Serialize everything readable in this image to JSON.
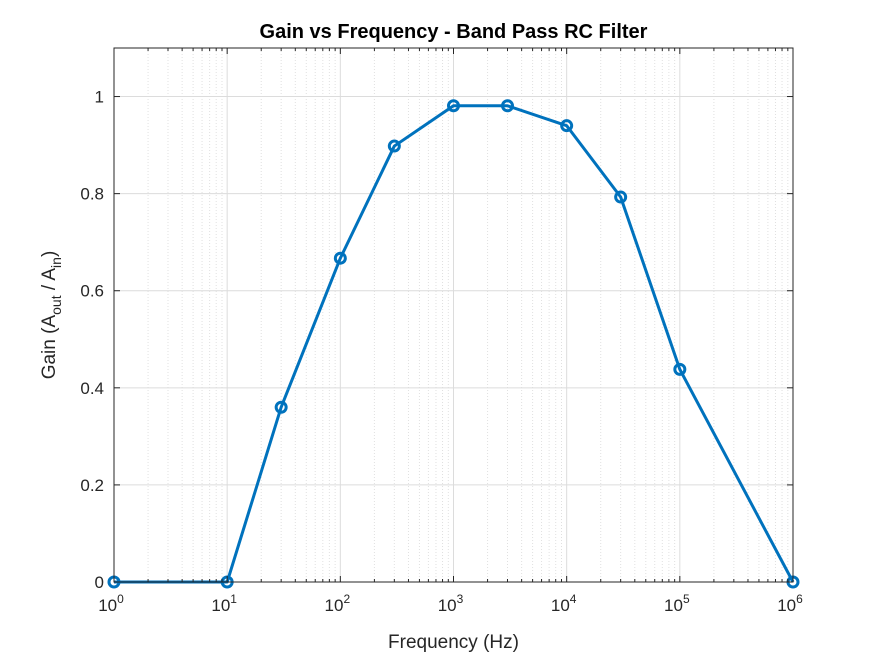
{
  "chart_data": {
    "type": "line",
    "title": "Gain vs Frequency - Band Pass RC Filter",
    "xlabel": "Frequency (Hz)",
    "ylabel": {
      "base": "Gain (A",
      "sub1": "out",
      "mid": " / A",
      "sub2": "in",
      "end": ")"
    },
    "xscale": "log",
    "xlim": [
      1,
      1000000
    ],
    "ylim": [
      0,
      1.1
    ],
    "grid": true,
    "x": [
      1,
      10,
      30,
      100,
      300,
      1000,
      3000,
      10000,
      30000,
      100000,
      1000000
    ],
    "series": [
      {
        "values": [
          0,
          0,
          0.36,
          0.667,
          0.898,
          0.981,
          0.981,
          0.94,
          0.793,
          0.438,
          0
        ],
        "color": "#0072BD",
        "marker": "circle"
      }
    ],
    "xticks": [
      {
        "value": 1,
        "base": "10",
        "exp": "0"
      },
      {
        "value": 10,
        "base": "10",
        "exp": "1"
      },
      {
        "value": 100,
        "base": "10",
        "exp": "2"
      },
      {
        "value": 1000,
        "base": "10",
        "exp": "3"
      },
      {
        "value": 10000,
        "base": "10",
        "exp": "4"
      },
      {
        "value": 100000,
        "base": "10",
        "exp": "5"
      },
      {
        "value": 1000000,
        "base": "10",
        "exp": "6"
      }
    ],
    "yticks": [
      {
        "value": 0,
        "label": "0"
      },
      {
        "value": 0.2,
        "label": "0.2"
      },
      {
        "value": 0.4,
        "label": "0.4"
      },
      {
        "value": 0.6,
        "label": "0.6"
      },
      {
        "value": 0.8,
        "label": "0.8"
      },
      {
        "value": 1,
        "label": "1"
      }
    ]
  }
}
